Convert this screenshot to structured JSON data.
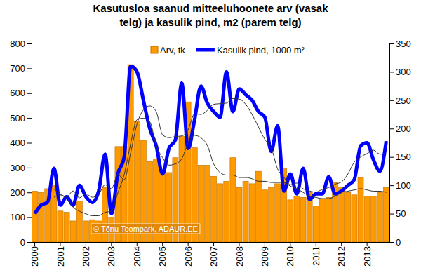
{
  "chart_data": {
    "type": "bar",
    "title": [
      "Kasutusloa saanud mitteeluhoonete arv (vasak",
      "telg) ja kasulik pind, m2 (parem telg)"
    ],
    "annotations": [
      {
        "text": "© Tõnu Toompark, ADAUR.EE"
      }
    ],
    "categories": [
      "2000",
      null,
      null,
      null,
      "2001",
      null,
      null,
      null,
      "2002",
      null,
      null,
      null,
      "2003",
      null,
      null,
      null,
      "2004",
      null,
      null,
      null,
      "2005",
      null,
      null,
      null,
      "2006",
      null,
      null,
      null,
      "2007",
      null,
      null,
      null,
      "2008",
      null,
      null,
      null,
      "2009",
      null,
      null,
      null,
      "2010",
      null,
      null,
      null,
      "2011",
      null,
      null,
      null,
      "2012",
      null,
      null,
      null,
      "2013",
      null,
      null,
      null
    ],
    "series": [
      {
        "name": "Arv, tk",
        "type": "bar",
        "color": "#ff9900",
        "values": [
          205,
          200,
          215,
          230,
          125,
          120,
          85,
          165,
          85,
          90,
          85,
          220,
          100,
          385,
          385,
          715,
          485,
          410,
          325,
          335,
          290,
          280,
          340,
          425,
          565,
          380,
          310,
          310,
          265,
          235,
          245,
          340,
          220,
          245,
          235,
          285,
          210,
          220,
          235,
          295,
          170,
          185,
          180,
          200,
          145,
          175,
          180,
          240,
          220,
          200,
          190,
          260,
          185,
          185,
          200,
          220
        ]
      },
      {
        "name": "Kasulik pind, 1000 m²",
        "type": "line",
        "color": "#0000ff",
        "axis": "y2",
        "values": [
          50,
          65,
          70,
          130,
          65,
          80,
          65,
          100,
          80,
          70,
          90,
          155,
          50,
          120,
          150,
          310,
          300,
          250,
          200,
          170,
          120,
          165,
          180,
          280,
          165,
          215,
          275,
          245,
          230,
          220,
          300,
          230,
          270,
          260,
          250,
          230,
          220,
          160,
          205,
          90,
          120,
          85,
          130,
          75,
          85,
          85,
          115,
          85,
          90,
          100,
          110,
          170,
          175,
          145,
          125,
          178
        ]
      },
      {
        "type": "line",
        "color": "#333333",
        "values": [
          null,
          null,
          null,
          213,
          193,
          173,
          140,
          124,
          114,
          106,
          106,
          120,
          124,
          198,
          272,
          396,
          493,
          499,
          485,
          390,
          340,
          310,
          315,
          335,
          400,
          430,
          420,
          390,
          315,
          280,
          270,
          270,
          260,
          260,
          255,
          245,
          245,
          240,
          240,
          240,
          225,
          215,
          200,
          185,
          180,
          175,
          175,
          185,
          200,
          205,
          210,
          215,
          210,
          205,
          205,
          200
        ]
      },
      {
        "type": "line",
        "color": "#333333",
        "axis": "y2",
        "values": [
          null,
          null,
          null,
          79,
          83,
          80,
          90,
          78,
          85,
          79,
          84,
          101,
          94,
          119,
          110,
          157,
          208,
          233,
          240,
          230,
          189,
          184,
          186,
          187,
          198,
          226,
          225,
          232,
          243,
          244,
          245,
          253,
          252,
          243,
          225,
          203,
          181,
          166,
          129,
          114,
          101,
          104,
          94,
          90,
          88,
          93,
          96,
          102,
          106,
          120,
          141,
          150,
          156,
          162,
          155,
          155
        ]
      }
    ],
    "ylim": [
      0,
      800
    ],
    "yticks": [
      0,
      100,
      200,
      300,
      400,
      500,
      600,
      700,
      800
    ],
    "y2lim": [
      0,
      350
    ],
    "y2ticks": [
      0,
      50,
      100,
      150,
      200,
      250,
      300,
      350
    ],
    "legend": "top",
    "grid": false
  }
}
